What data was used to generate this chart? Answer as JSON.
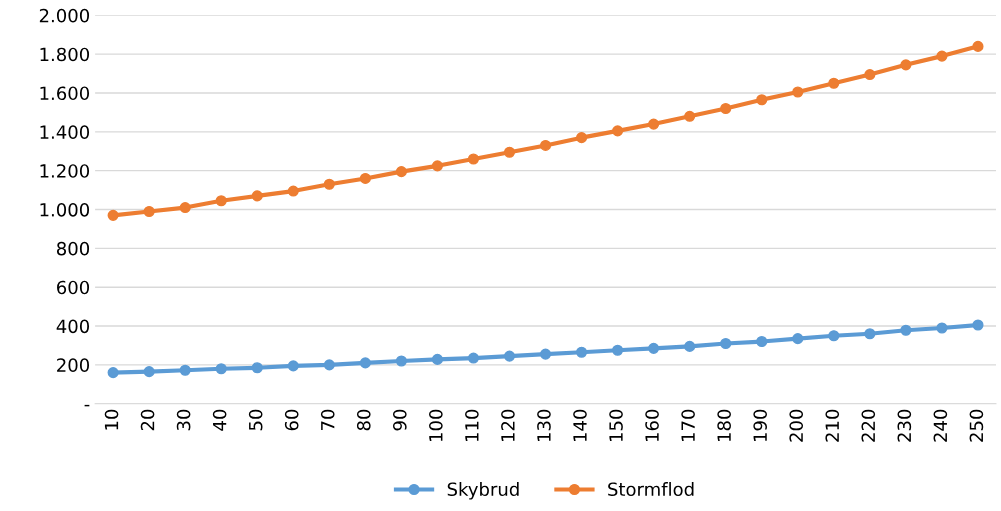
{
  "chart_data": {
    "type": "line",
    "categories": [
      "10",
      "20",
      "30",
      "40",
      "50",
      "60",
      "70",
      "80",
      "90",
      "100",
      "110",
      "120",
      "130",
      "140",
      "150",
      "160",
      "170",
      "180",
      "190",
      "200",
      "210",
      "220",
      "230",
      "240",
      "250"
    ],
    "series": [
      {
        "name": "Skybrud",
        "color": "#5b9bd5",
        "values": [
          160,
          165,
          172,
          180,
          185,
          195,
          200,
          210,
          220,
          228,
          235,
          245,
          255,
          265,
          275,
          285,
          295,
          310,
          320,
          335,
          350,
          360,
          378,
          390,
          405
        ]
      },
      {
        "name": "Stormflod",
        "color": "#ed7d31",
        "values": [
          970,
          990,
          1010,
          1045,
          1070,
          1095,
          1130,
          1160,
          1195,
          1225,
          1260,
          1295,
          1330,
          1370,
          1405,
          1440,
          1480,
          1520,
          1565,
          1605,
          1650,
          1695,
          1745,
          1790,
          1840
        ]
      }
    ],
    "ylim": [
      0,
      2000
    ],
    "yticks": [
      {
        "value": 0,
        "label": "-"
      },
      200,
      400,
      600,
      800,
      {
        "value": 1000,
        "label": "1.000"
      },
      {
        "value": 1200,
        "label": "1.200"
      },
      {
        "value": 1400,
        "label": "1.400"
      },
      {
        "value": 1600,
        "label": "1.600"
      },
      {
        "value": 1800,
        "label": "1.800"
      },
      {
        "value": 2000,
        "label": "2.000"
      }
    ],
    "grid": "y",
    "legend": "bottom",
    "marker": "circle",
    "line_style": "solid"
  }
}
